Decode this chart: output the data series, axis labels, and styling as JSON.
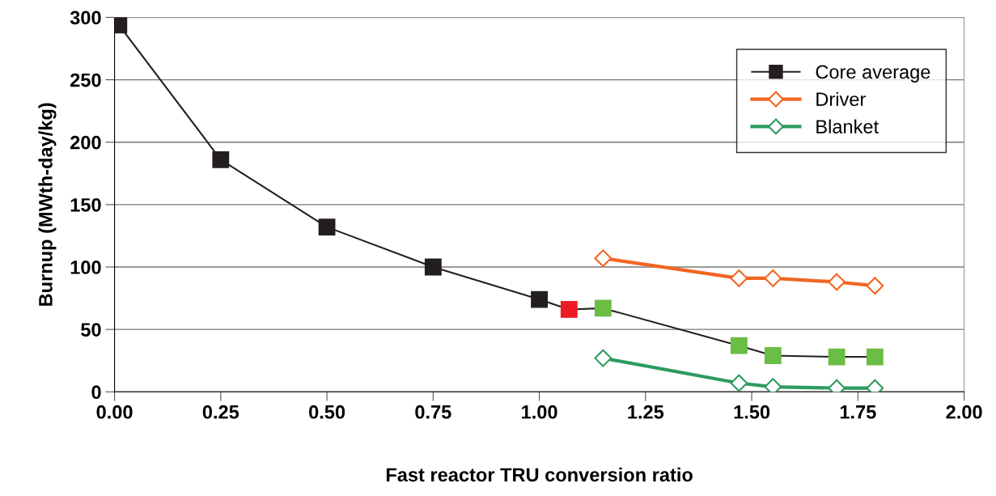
{
  "chart_data": {
    "type": "line",
    "xlabel": "Fast reactor TRU conversion ratio",
    "ylabel": "Burnup (MWth-day/kg)",
    "xlim": [
      0,
      2
    ],
    "xticks": [
      {
        "value": 0,
        "label": "0.00"
      },
      0.25,
      {
        "value": 0.5,
        "label": "0.50"
      },
      0.75,
      {
        "value": 1,
        "label": "1.00"
      },
      1.25,
      {
        "value": 1.5,
        "label": "1.50"
      },
      1.75,
      {
        "value": 2,
        "label": "2.00"
      }
    ],
    "ylim": [
      0,
      300
    ],
    "yticks": [
      0,
      50,
      100,
      150,
      200,
      250,
      300
    ],
    "grid": "y",
    "legend": "top right",
    "series": [
      {
        "name": "Core average",
        "color": "#231f20",
        "marker": "square",
        "x": [
          0.01,
          0.25,
          0.5,
          0.75,
          1.0,
          1.07,
          1.15,
          1.47,
          1.55,
          1.7,
          1.79
        ],
        "values": [
          294,
          186,
          132,
          100,
          74,
          66,
          67,
          37,
          29,
          28,
          28
        ],
        "colors": [
          "#231f20",
          "#231f20",
          "#231f20",
          "#231f20",
          "#231f20",
          "#ed1c24",
          "#6abd45",
          "#6abd45",
          "#6abd45",
          "#6abd45",
          "#6abd45"
        ]
      },
      {
        "name": "Driver",
        "color": "#f26522",
        "marker": "diamond",
        "x": [
          1.15,
          1.47,
          1.55,
          1.7,
          1.79
        ],
        "values": [
          107,
          91,
          91,
          88,
          85
        ]
      },
      {
        "name": "Blanket",
        "color": "#2e9a5f",
        "marker": "diamond",
        "x": [
          1.15,
          1.47,
          1.55,
          1.7,
          1.79
        ],
        "values": [
          27,
          7,
          4,
          3,
          3
        ]
      }
    ]
  }
}
